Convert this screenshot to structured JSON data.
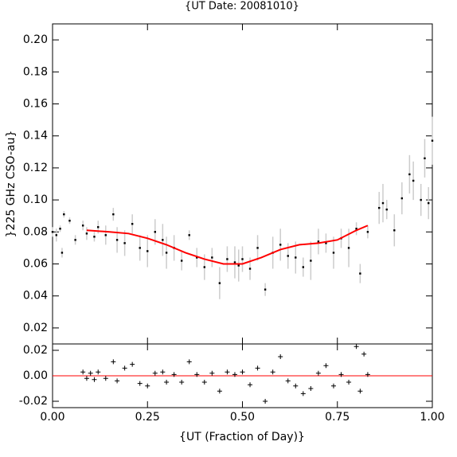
{
  "chart_data": [
    {
      "type": "scatter",
      "title": "{UT Date: 20081010}",
      "ylabel": "}225 GHz CSO-au}",
      "xlim": [
        0,
        1
      ],
      "xticks": [
        0,
        0.25,
        0.5,
        0.75,
        1
      ],
      "ylim": [
        0.01,
        0.21
      ],
      "yticks": [
        0.02,
        0.04,
        0.06,
        0.08,
        {
          "value": 0.1,
          "label": "0.10"
        },
        0.12,
        0.14,
        0.16,
        0.18,
        {
          "value": 0.2,
          "label": "0.20"
        }
      ],
      "series": [
        {
          "color": "#000000",
          "error_color": "#cccccc",
          "x": [
            0,
            0.01,
            0.02,
            0.025,
            0.03,
            0.045,
            0.06,
            0.08,
            0.09,
            0.11,
            0.12,
            0.14,
            0.16,
            0.17,
            0.19,
            0.21,
            0.23,
            0.25,
            0.27,
            0.29,
            0.3,
            0.32,
            0.34,
            0.36,
            0.38,
            0.4,
            0.42,
            0.44,
            0.46,
            0.48,
            0.49,
            0.5,
            0.52,
            0.54,
            0.56,
            0.58,
            0.6,
            0.62,
            0.64,
            0.66,
            0.68,
            0.7,
            0.72,
            0.74,
            0.76,
            0.78,
            0.8,
            0.81,
            0.83,
            0.86,
            0.87,
            0.88,
            0.9,
            0.92,
            0.94,
            0.95,
            0.97,
            0.98,
            0.99,
            1
          ],
          "values": [
            0.08,
            0.078,
            0.082,
            0.067,
            0.091,
            0.087,
            0.075,
            0.084,
            0.079,
            0.077,
            0.083,
            0.078,
            0.091,
            0.075,
            0.073,
            0.085,
            0.07,
            0.068,
            0.08,
            0.075,
            0.067,
            0.07,
            0.062,
            0.078,
            0.064,
            0.058,
            0.064,
            0.048,
            0.063,
            0.061,
            0.059,
            0.063,
            0.057,
            0.07,
            0.044,
            0.067,
            0.072,
            0.065,
            0.064,
            0.058,
            0.062,
            0.074,
            0.073,
            0.067,
            0.076,
            0.07,
            0.082,
            0.054,
            0.08,
            0.095,
            0.098,
            0.094,
            0.081,
            0.101,
            0.116,
            0.112,
            0.1,
            0.126,
            0.098,
            0.137
          ],
          "error": [
            0.003,
            0.004,
            0.002,
            0.003,
            0.002,
            0.002,
            0.003,
            0.003,
            0.004,
            0.003,
            0.004,
            0.006,
            0.004,
            0.008,
            0.008,
            0.006,
            0.008,
            0.01,
            0.008,
            0.01,
            0.01,
            0.008,
            0.006,
            0.003,
            0.006,
            0.008,
            0.006,
            0.01,
            0.008,
            0.01,
            0.01,
            0.008,
            0.007,
            0.008,
            0.004,
            0.01,
            0.01,
            0.008,
            0.01,
            0.006,
            0.012,
            0.008,
            0.006,
            0.01,
            0.006,
            0.012,
            0.004,
            0.006,
            0.004,
            0.01,
            0.012,
            0.006,
            0.01,
            0.01,
            0.012,
            0.012,
            0.01,
            0.012,
            0.01,
            0.015
          ]
        },
        {
          "type": "line",
          "color": "#ff0000",
          "x": [
            0.09,
            0.15,
            0.2,
            0.25,
            0.3,
            0.35,
            0.4,
            0.45,
            0.5,
            0.55,
            0.6,
            0.65,
            0.7,
            0.75,
            0.8,
            0.83
          ],
          "values": [
            0.081,
            0.08,
            0.079,
            0.076,
            0.072,
            0.067,
            0.063,
            0.06,
            0.06,
            0.064,
            0.069,
            0.072,
            0.073,
            0.075,
            0.081,
            0.084
          ]
        }
      ]
    },
    {
      "type": "scatter",
      "xlabel": "{UT (Fraction of Day)}",
      "xlim": [
        0,
        1
      ],
      "xticks": [
        {
          "value": 0,
          "label": "0.00"
        },
        0.25,
        {
          "value": 0.5,
          "label": "0.50"
        },
        0.75,
        {
          "value": 1,
          "label": "1.00"
        }
      ],
      "ylim": [
        -0.025,
        0.025
      ],
      "yticks": [
        {
          "value": -0.02,
          "label": "-0.02"
        },
        {
          "value": 0,
          "label": "0.00"
        },
        0.02
      ],
      "zero_line_color": "#ff0000",
      "series": [
        {
          "color": "#000000",
          "x": [
            0.08,
            0.09,
            0.1,
            0.11,
            0.12,
            0.14,
            0.16,
            0.17,
            0.19,
            0.21,
            0.23,
            0.25,
            0.27,
            0.29,
            0.3,
            0.32,
            0.34,
            0.36,
            0.38,
            0.4,
            0.42,
            0.44,
            0.46,
            0.48,
            0.5,
            0.52,
            0.54,
            0.56,
            0.58,
            0.6,
            0.62,
            0.64,
            0.66,
            0.68,
            0.7,
            0.72,
            0.74,
            0.76,
            0.78,
            0.8,
            0.81,
            0.82,
            0.83
          ],
          "values": [
            0.003,
            -0.002,
            0.002,
            -0.003,
            0.003,
            -0.002,
            0.011,
            -0.004,
            0.006,
            0.009,
            -0.006,
            -0.008,
            0.002,
            0.003,
            -0.005,
            0.001,
            -0.005,
            0.011,
            0.001,
            -0.005,
            0.002,
            -0.012,
            0.003,
            0.001,
            0.003,
            -0.007,
            0.006,
            -0.02,
            0.003,
            0.015,
            -0.004,
            -0.008,
            -0.014,
            -0.01,
            0.002,
            0.008,
            -0.008,
            0.001,
            -0.005,
            0.023,
            -0.012,
            0.017,
            0.001
          ]
        }
      ]
    }
  ]
}
